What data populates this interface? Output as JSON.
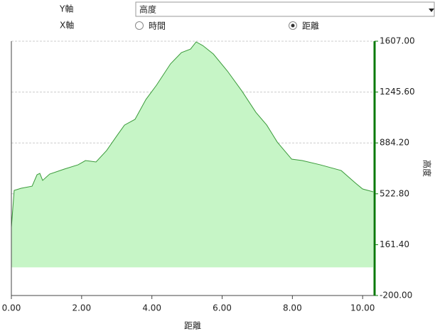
{
  "controls": {
    "y_axis_label": "Y軸",
    "y_axis_select": "高度",
    "x_axis_label": "X軸",
    "x_axis_options": [
      {
        "label": "時間",
        "checked": false
      },
      {
        "label": "距離",
        "checked": true
      }
    ]
  },
  "chart_data": {
    "type": "area",
    "x_label": "距離",
    "y_label": "高度",
    "x": [
      0,
      0.08,
      0.28,
      0.59,
      0.73,
      0.81,
      0.89,
      1.09,
      1.5,
      1.9,
      2.11,
      2.41,
      2.71,
      3.02,
      3.22,
      3.52,
      3.83,
      4.13,
      4.53,
      4.84,
      5.1,
      5.26,
      5.45,
      5.75,
      6.15,
      6.56,
      6.96,
      7.27,
      7.57,
      7.98,
      8.28,
      8.79,
      9.39,
      9.8,
      10.0,
      10.3
    ],
    "series": [
      {
        "name": "高度",
        "color": "#3a9a3a",
        "fill": "#c6f5c6",
        "values": [
          285,
          547,
          562,
          577,
          658,
          668,
          618,
          663,
          698,
          729,
          759,
          749,
          830,
          941,
          1011,
          1052,
          1193,
          1294,
          1446,
          1526,
          1551,
          1602,
          1576,
          1516,
          1395,
          1254,
          1102,
          1011,
          890,
          769,
          759,
          729,
          688,
          598,
          557,
          537
        ]
      }
    ],
    "xlim": [
      0,
      10.34
    ],
    "ylim": [
      -200,
      1607
    ],
    "xticks": [
      {
        "value": 0,
        "label": "0.00"
      },
      {
        "value": 2,
        "label": "2.00"
      },
      {
        "value": 4,
        "label": "4.00"
      },
      {
        "value": 6,
        "label": "6.00"
      },
      {
        "value": 8,
        "label": "8.00"
      },
      {
        "value": 10,
        "label": "10.00"
      }
    ],
    "yticks": [
      {
        "value": -200,
        "label": "-200.00"
      },
      {
        "value": 161.4,
        "label": "161.40"
      },
      {
        "value": 522.8,
        "label": "522.80"
      },
      {
        "value": 884.2,
        "label": "884.20"
      },
      {
        "value": 1245.6,
        "label": "1245.60"
      },
      {
        "value": 1607,
        "label": "1607.00"
      }
    ],
    "grid": true,
    "axis_color": "#0a7a0a"
  }
}
